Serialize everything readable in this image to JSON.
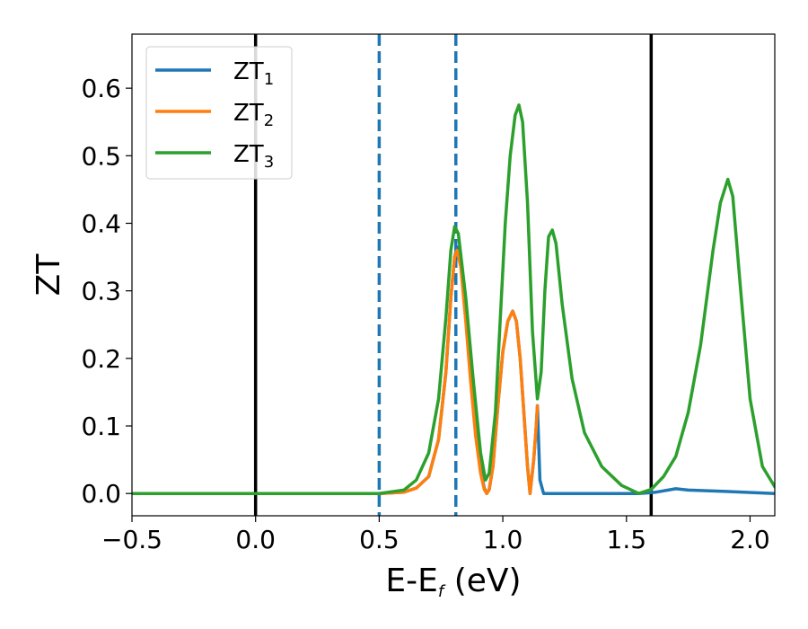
{
  "chart_data": {
    "type": "line",
    "title": "",
    "xlabel": "E-E",
    "xlabel_sub": "f",
    "xlabel_unit": " (eV)",
    "ylabel": "ZT",
    "xlim": [
      -0.5,
      2.1
    ],
    "ylim": [
      -0.033,
      0.68
    ],
    "xticks": [
      -0.5,
      0.0,
      0.5,
      1.0,
      1.5,
      2.0
    ],
    "xtick_labels": [
      "−0.5",
      "0.0",
      "0.5",
      "1.0",
      "1.5",
      "2.0"
    ],
    "yticks": [
      0.0,
      0.1,
      0.2,
      0.3,
      0.4,
      0.5,
      0.6
    ],
    "ytick_labels": [
      "0.0",
      "0.1",
      "0.2",
      "0.3",
      "0.4",
      "0.5",
      "0.6"
    ],
    "grid": false,
    "legend_position": "top-left",
    "vlines": [
      {
        "x": 0.0,
        "style": "solid",
        "color": "#000000"
      },
      {
        "x": 1.6,
        "style": "solid",
        "color": "#000000"
      },
      {
        "x": 0.5,
        "style": "dashed",
        "color": "#1f77b4"
      },
      {
        "x": 0.81,
        "style": "dashed",
        "color": "#1f77b4"
      }
    ],
    "series": [
      {
        "name": "ZT",
        "sub": "1",
        "color": "#1f77b4",
        "points": [
          [
            -0.5,
            0
          ],
          [
            0.5,
            0
          ],
          [
            0.6,
            0.002
          ],
          [
            0.65,
            0.008
          ],
          [
            0.7,
            0.025
          ],
          [
            0.74,
            0.08
          ],
          [
            0.77,
            0.18
          ],
          [
            0.79,
            0.29
          ],
          [
            0.805,
            0.35
          ],
          [
            0.815,
            0.365
          ],
          [
            0.83,
            0.34
          ],
          [
            0.85,
            0.26
          ],
          [
            0.87,
            0.17
          ],
          [
            0.89,
            0.09
          ],
          [
            0.91,
            0.035
          ],
          [
            0.925,
            0.008
          ],
          [
            0.935,
            0.0
          ],
          [
            0.945,
            0.006
          ],
          [
            0.96,
            0.04
          ],
          [
            0.98,
            0.13
          ],
          [
            1.0,
            0.21
          ],
          [
            1.02,
            0.255
          ],
          [
            1.04,
            0.27
          ],
          [
            1.055,
            0.255
          ],
          [
            1.07,
            0.2
          ],
          [
            1.085,
            0.12
          ],
          [
            1.1,
            0.04
          ],
          [
            1.11,
            0.0
          ],
          [
            1.125,
            0.05
          ],
          [
            1.135,
            0.1
          ],
          [
            1.14,
            0.13
          ],
          [
            1.15,
            0.02
          ],
          [
            1.165,
            0.0
          ],
          [
            1.3,
            0.0
          ],
          [
            1.55,
            0.0
          ],
          [
            1.62,
            0.002
          ],
          [
            1.7,
            0.007
          ],
          [
            1.75,
            0.005
          ],
          [
            1.9,
            0.003
          ],
          [
            2.1,
            0.0
          ]
        ]
      },
      {
        "name": "ZT",
        "sub": "2",
        "color": "#ff7f0e",
        "points": [
          [
            -0.5,
            0
          ],
          [
            0.5,
            0
          ],
          [
            0.6,
            0.002
          ],
          [
            0.65,
            0.008
          ],
          [
            0.7,
            0.025
          ],
          [
            0.74,
            0.08
          ],
          [
            0.77,
            0.18
          ],
          [
            0.79,
            0.29
          ],
          [
            0.805,
            0.35
          ],
          [
            0.815,
            0.36
          ],
          [
            0.83,
            0.335
          ],
          [
            0.85,
            0.255
          ],
          [
            0.87,
            0.165
          ],
          [
            0.89,
            0.085
          ],
          [
            0.91,
            0.03
          ],
          [
            0.925,
            0.006
          ],
          [
            0.935,
            0.0
          ],
          [
            0.945,
            0.006
          ],
          [
            0.96,
            0.04
          ],
          [
            0.98,
            0.13
          ],
          [
            1.0,
            0.21
          ],
          [
            1.02,
            0.255
          ],
          [
            1.04,
            0.27
          ],
          [
            1.055,
            0.255
          ],
          [
            1.07,
            0.2
          ],
          [
            1.085,
            0.12
          ],
          [
            1.1,
            0.04
          ],
          [
            1.11,
            0.0
          ],
          [
            1.125,
            0.05
          ],
          [
            1.135,
            0.1
          ],
          [
            1.14,
            0.13
          ]
        ]
      },
      {
        "name": "ZT",
        "sub": "3",
        "color": "#2ca02c",
        "points": [
          [
            -0.5,
            0
          ],
          [
            0.5,
            0
          ],
          [
            0.6,
            0.005
          ],
          [
            0.65,
            0.02
          ],
          [
            0.7,
            0.06
          ],
          [
            0.74,
            0.14
          ],
          [
            0.77,
            0.26
          ],
          [
            0.79,
            0.36
          ],
          [
            0.805,
            0.395
          ],
          [
            0.82,
            0.385
          ],
          [
            0.85,
            0.29
          ],
          [
            0.88,
            0.17
          ],
          [
            0.91,
            0.06
          ],
          [
            0.93,
            0.02
          ],
          [
            0.945,
            0.03
          ],
          [
            0.97,
            0.12
          ],
          [
            0.99,
            0.26
          ],
          [
            1.01,
            0.4
          ],
          [
            1.03,
            0.5
          ],
          [
            1.05,
            0.56
          ],
          [
            1.065,
            0.575
          ],
          [
            1.08,
            0.55
          ],
          [
            1.1,
            0.43
          ],
          [
            1.12,
            0.24
          ],
          [
            1.14,
            0.14
          ],
          [
            1.155,
            0.18
          ],
          [
            1.17,
            0.3
          ],
          [
            1.185,
            0.38
          ],
          [
            1.2,
            0.39
          ],
          [
            1.215,
            0.37
          ],
          [
            1.24,
            0.28
          ],
          [
            1.28,
            0.17
          ],
          [
            1.33,
            0.09
          ],
          [
            1.4,
            0.04
          ],
          [
            1.48,
            0.012
          ],
          [
            1.55,
            0.0
          ],
          [
            1.6,
            0.006
          ],
          [
            1.65,
            0.025
          ],
          [
            1.7,
            0.055
          ],
          [
            1.75,
            0.12
          ],
          [
            1.8,
            0.22
          ],
          [
            1.85,
            0.36
          ],
          [
            1.88,
            0.43
          ],
          [
            1.91,
            0.465
          ],
          [
            1.93,
            0.44
          ],
          [
            1.96,
            0.31
          ],
          [
            2.0,
            0.14
          ],
          [
            2.05,
            0.04
          ],
          [
            2.1,
            0.01
          ]
        ]
      }
    ]
  }
}
